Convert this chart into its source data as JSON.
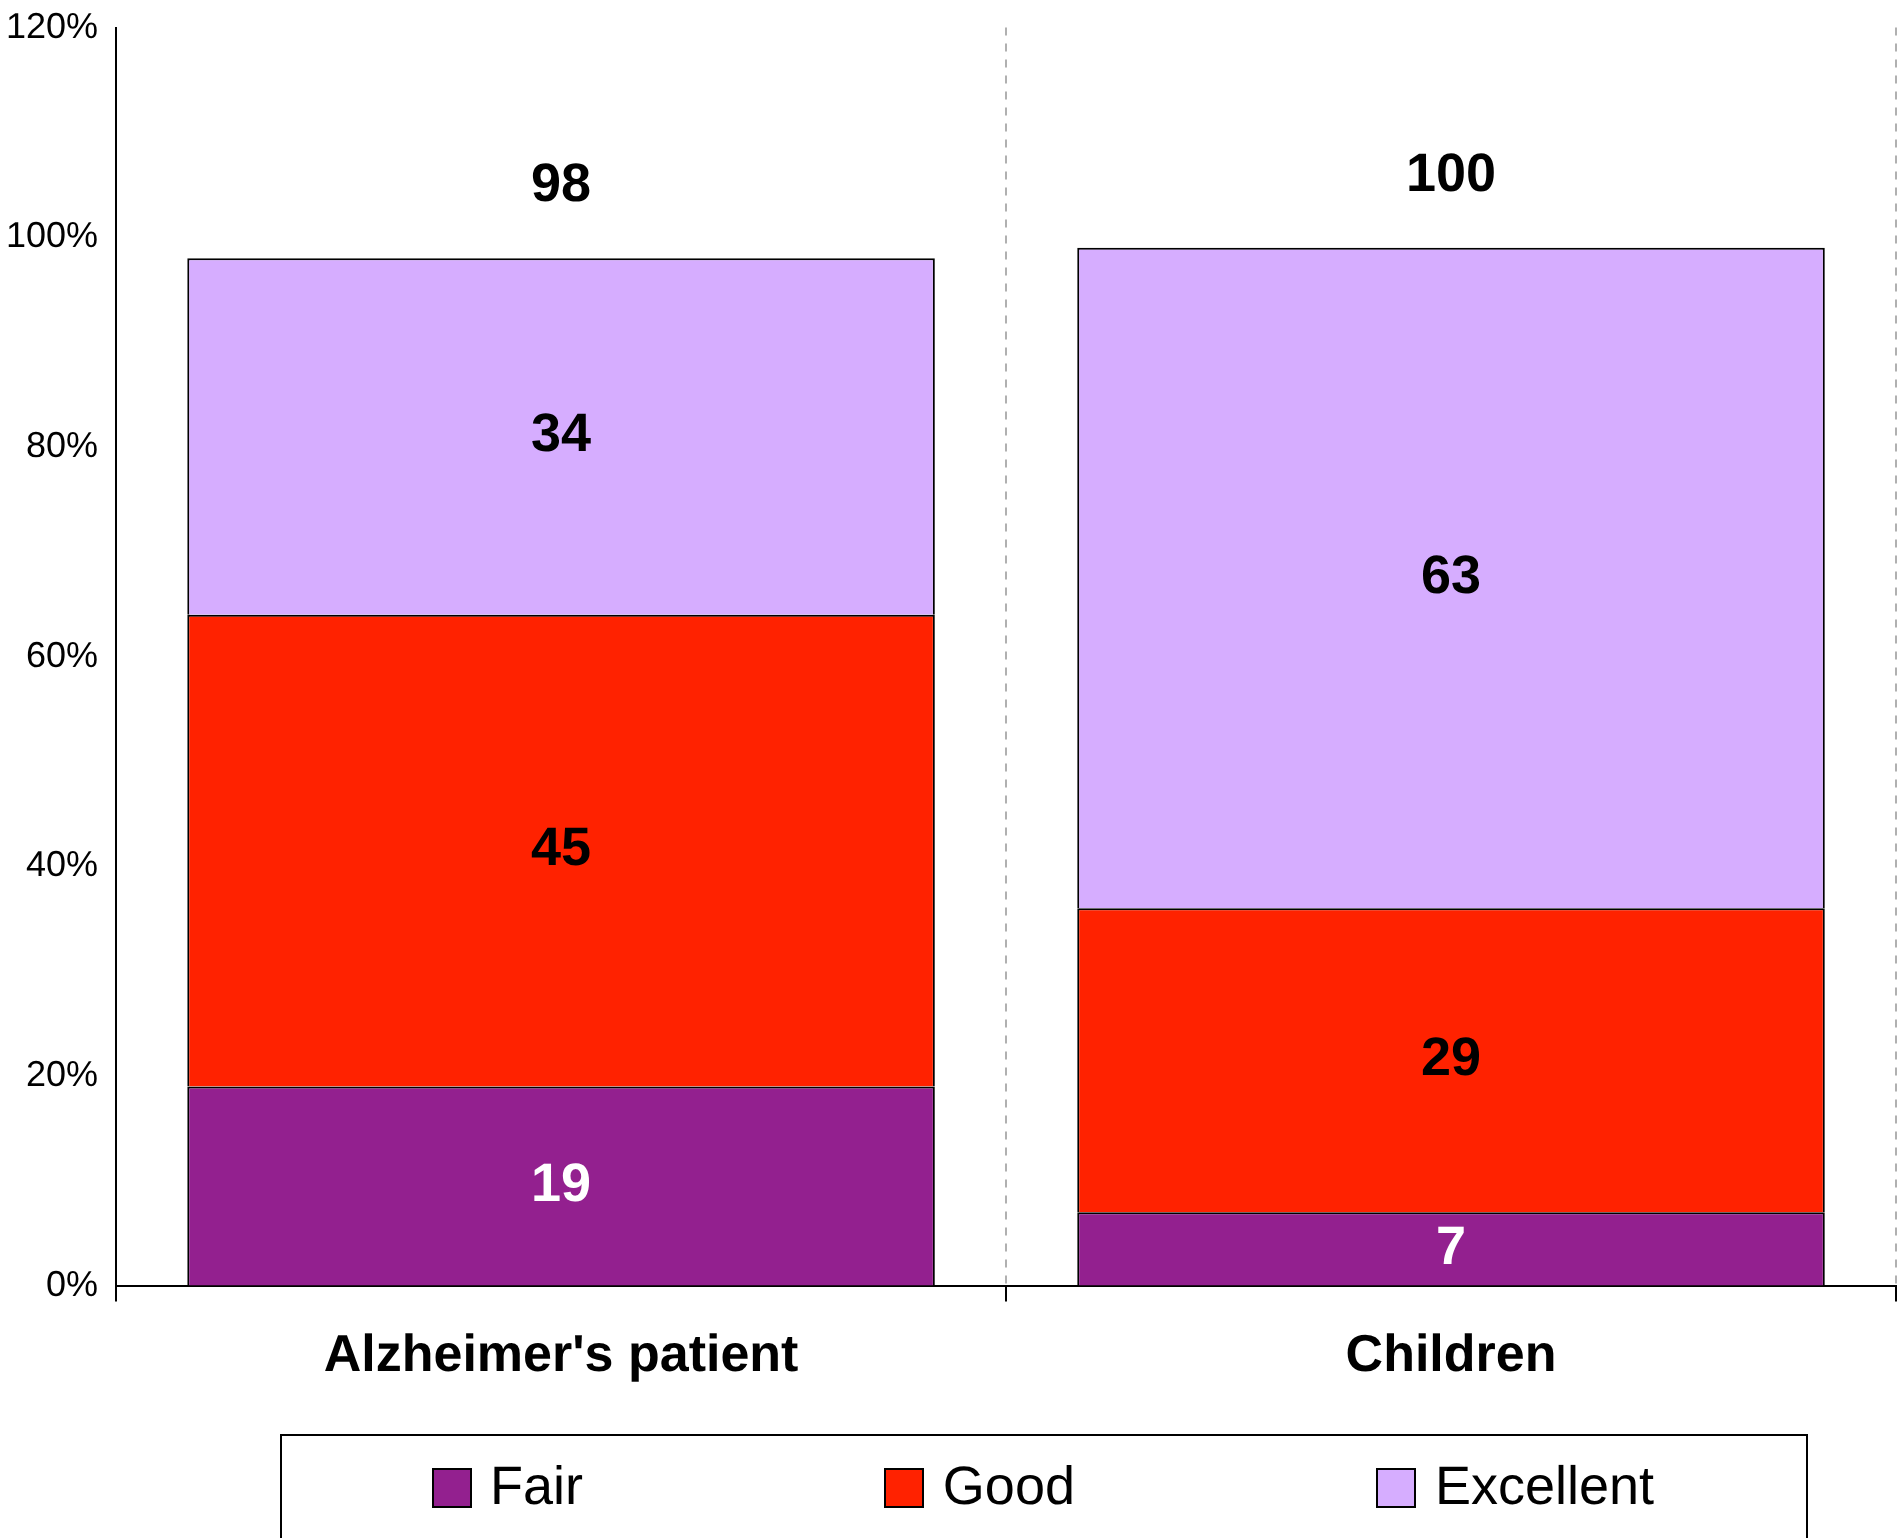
{
  "chart_data": {
    "type": "bar",
    "stacked": true,
    "categories": [
      "Alzheimer's patient",
      "Children"
    ],
    "series": [
      {
        "name": "Fair",
        "color": "#93208f",
        "values": [
          19,
          7
        ]
      },
      {
        "name": "Good",
        "color": "#ff2200",
        "values": [
          45,
          29
        ]
      },
      {
        "name": "Excellent",
        "color": "#d6adff",
        "values": [
          34,
          63
        ]
      }
    ],
    "ylim": [
      0,
      120
    ],
    "yticks": [
      {
        "value": 0,
        "label": "0%"
      },
      {
        "value": 20,
        "label": "20%"
      },
      {
        "value": 40,
        "label": "40%"
      },
      {
        "value": 60,
        "label": "60%"
      },
      {
        "value": 80,
        "label": "80%"
      },
      {
        "value": 100,
        "label": "100%"
      },
      {
        "value": 120,
        "label": "120%"
      }
    ],
    "data_labels": true,
    "totals": [
      "98",
      "100"
    ],
    "grid": "x",
    "legend": "bottom"
  }
}
